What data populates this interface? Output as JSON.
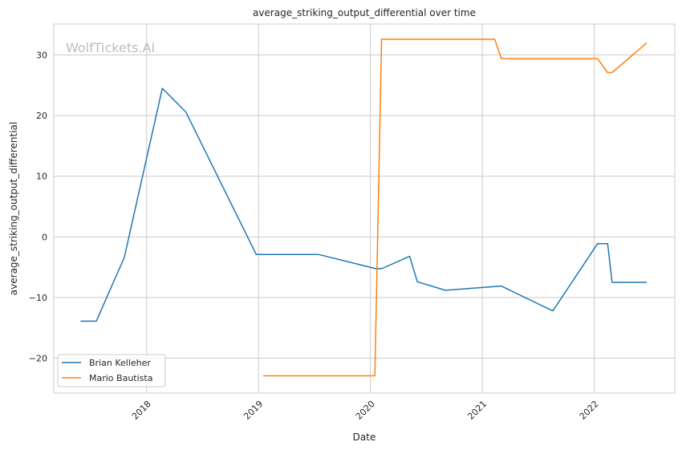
{
  "chart_data": {
    "type": "line",
    "title": "average_striking_output_differential over time",
    "xlabel": "Date",
    "ylabel": "average_striking_output_differential",
    "watermark": "WolfTickets.AI",
    "xlim": [
      2017.17,
      2022.72
    ],
    "ylim": [
      -25.75,
      35.1
    ],
    "x_ticks": [
      2018,
      2019,
      2020,
      2021,
      2022
    ],
    "x_tick_labels": [
      "2018",
      "2019",
      "2020",
      "2021",
      "2022"
    ],
    "y_ticks": [
      -20,
      -10,
      0,
      10,
      20,
      30
    ],
    "y_tick_labels": [
      "−20",
      "−10",
      "0",
      "10",
      "20",
      "30"
    ],
    "grid": true,
    "legend_position": "bottom-left",
    "series": [
      {
        "name": "Brian Kelleher",
        "color": "#1f77b4",
        "x": [
          2017.41,
          2017.55,
          2017.8,
          2018.14,
          2018.35,
          2018.98,
          2019.54,
          2020.05,
          2020.1,
          2020.35,
          2020.42,
          2020.67,
          2021.17,
          2021.63,
          2022.03,
          2022.12,
          2022.16,
          2022.47
        ],
        "y": [
          -13.9,
          -13.9,
          -3.4,
          24.5,
          20.6,
          -2.9,
          -2.9,
          -5.25,
          -5.25,
          -3.2,
          -7.4,
          -8.8,
          -8.1,
          -12.2,
          -1.1,
          -1.1,
          -7.5,
          -7.5
        ]
      },
      {
        "name": "Mario Bautista",
        "color": "#ff7f0e",
        "x": [
          2019.04,
          2020.04,
          2020.1,
          2021.11,
          2021.17,
          2022.03,
          2022.12,
          2022.16,
          2022.47
        ],
        "y": [
          -22.9,
          -22.9,
          32.6,
          32.6,
          29.4,
          29.4,
          27.1,
          27.1,
          32.0
        ]
      }
    ]
  }
}
